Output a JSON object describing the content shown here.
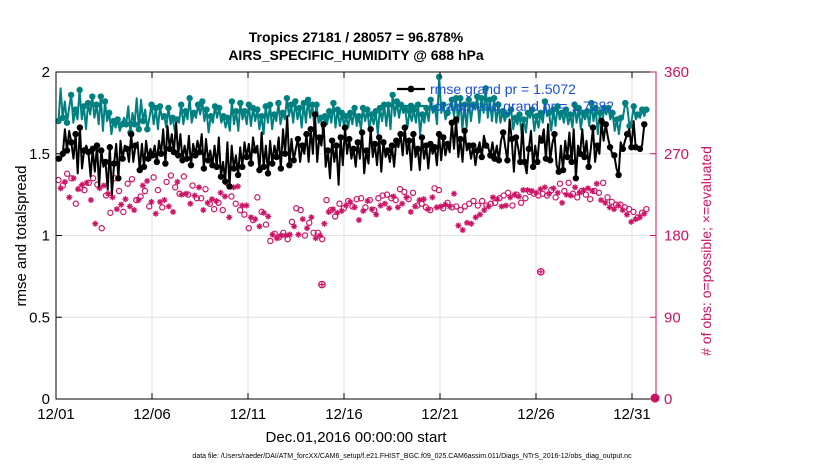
{
  "chart_data": {
    "type": "line",
    "title_line1": "Tropics 27181 / 28057 = 96.878%",
    "title_line2": "AIRS_SPECIFIC_HUMIDITY @ 688 hPa",
    "xlabel": "Dec.01,2016 00:00:00 start",
    "ylabel_left": "rmse and totalspread",
    "ylabel_right": "# of obs: o=possible; ×=evaluated",
    "footnote": "data file: /Users/raeder/DAI/ATM_forcXX/CAM6_setup/f.e21.FHIST_BGC.f09_025.CAM6assim.011/Diags_NTrS_2016-12/obs_diag_output.nc",
    "x_tick_labels": [
      "12/01",
      "12/06",
      "12/11",
      "12/16",
      "12/21",
      "12/26",
      "12/31"
    ],
    "x_tick_values": [
      0,
      5,
      10,
      15,
      20,
      25,
      30
    ],
    "xlim": [
      0,
      31.25
    ],
    "y_left_ticks": [
      "0",
      "0.5",
      "1",
      "1.5",
      "2"
    ],
    "y_left_tick_values": [
      0,
      0.5,
      1,
      1.5,
      2
    ],
    "ylim_left": [
      0,
      2
    ],
    "y_right_ticks": [
      "0",
      "90",
      "180",
      "270",
      "360"
    ],
    "y_right_tick_values": [
      0,
      90,
      180,
      270,
      360
    ],
    "ylim_right": [
      0,
      360
    ],
    "grid": true,
    "colors": {
      "rmse": "#000000",
      "totalspread": "#008080",
      "obs": "#cc1466",
      "legend_text": "#1a4fd6",
      "grid": "#e4e4e4"
    },
    "series": [
      {
        "name": "rmse",
        "legend_label": "rmse grand pr = 1.5072",
        "marker": "filled-circle",
        "values": [
          1.47,
          1.46,
          1.5,
          1.65,
          1.52,
          1.64,
          1.57,
          1.47,
          1.62,
          1.38,
          1.66,
          1.41,
          1.52,
          1.55,
          1.51,
          1.36,
          1.53,
          1.39,
          1.55,
          1.3,
          1.52,
          1.42,
          1.45,
          1.28,
          1.54,
          1.25,
          1.44,
          1.56,
          1.35,
          1.58,
          1.47,
          1.55,
          1.53,
          1.45,
          1.62,
          1.45,
          1.55,
          1.57,
          1.4,
          1.56,
          1.42,
          1.58,
          1.47,
          1.53,
          1.49,
          1.55,
          1.45,
          1.58,
          1.5,
          1.65,
          1.44,
          1.67,
          1.53,
          1.62,
          1.51,
          1.69,
          1.49,
          1.62,
          1.46,
          1.55,
          1.47,
          1.61,
          1.43,
          1.56,
          1.49,
          1.58,
          1.51,
          1.62,
          1.41,
          1.59,
          1.46,
          1.52,
          1.43,
          1.55,
          1.42,
          1.6,
          1.36,
          1.45,
          1.33,
          1.57,
          1.3,
          1.55,
          1.41,
          1.49,
          1.37,
          1.54,
          1.42,
          1.57,
          1.48,
          1.56,
          1.44,
          1.6,
          1.52,
          1.55,
          1.4,
          1.63,
          1.42,
          1.55,
          1.38,
          1.58,
          1.44,
          1.55,
          1.48,
          1.6,
          1.41,
          1.65,
          1.5,
          1.73,
          1.43,
          1.59,
          1.46,
          1.53,
          1.59,
          1.45,
          1.55,
          1.5,
          1.62,
          1.45,
          1.65,
          1.5,
          1.74,
          1.45,
          1.6,
          1.55,
          1.68,
          1.42,
          1.52,
          1.35,
          1.58,
          1.45,
          1.55,
          1.31,
          1.6,
          1.43,
          1.66,
          1.5,
          1.59,
          1.47,
          1.53,
          1.42,
          1.57,
          1.47,
          1.63,
          1.38,
          1.52,
          1.44,
          1.65,
          1.48,
          1.56,
          1.43,
          1.6,
          1.39,
          1.57,
          1.48,
          1.52,
          1.45,
          1.55,
          1.42,
          1.58,
          1.54,
          1.62,
          1.49,
          1.66,
          1.5,
          1.58,
          1.4,
          1.62,
          1.48,
          1.53,
          1.4,
          1.6,
          1.47,
          1.55,
          1.41,
          1.56,
          1.5,
          1.54,
          1.43,
          1.62,
          1.46,
          1.6,
          1.49,
          1.56,
          1.51,
          1.69,
          1.53,
          1.71,
          1.48,
          1.59,
          1.45,
          1.64,
          1.52,
          1.55,
          1.47,
          1.55,
          1.43,
          1.52,
          1.57,
          1.48,
          1.61,
          1.55,
          1.54,
          1.49,
          1.57,
          1.47,
          1.55,
          1.46,
          1.58,
          1.63,
          1.54,
          1.46,
          1.71,
          1.59,
          1.39,
          1.6,
          1.54,
          1.45,
          1.68,
          1.45,
          1.38,
          1.53,
          1.64,
          1.42,
          1.55,
          1.45,
          1.61,
          1.58,
          1.65,
          1.47,
          1.68,
          1.46,
          1.56,
          1.62,
          1.43,
          1.39,
          1.55,
          1.4,
          1.58,
          1.48,
          1.63,
          1.45,
          1.65,
          1.35,
          1.55,
          1.5,
          1.65,
          1.48,
          1.58,
          1.42,
          1.53,
          1.66,
          1.45,
          1.55,
          1.5,
          1.7,
          1.58,
          1.68,
          1.6,
          1.54,
          1.5,
          1.49,
          1.41,
          1.37,
          1.57,
          1.53,
          1.58,
          1.62,
          1.65,
          1.54,
          1.7,
          1.54,
          1.53,
          1.53,
          1.55,
          1.68,
          1.69
        ]
      },
      {
        "name": "totalspread",
        "legend_label": "totalspread grand pr = 1.7282",
        "marker": "filled-circle",
        "values": [
          1.7,
          1.9,
          1.72,
          1.82,
          1.69,
          1.78,
          1.86,
          1.69,
          1.77,
          1.71,
          1.89,
          1.71,
          1.79,
          1.65,
          1.81,
          1.74,
          1.85,
          1.72,
          1.8,
          1.68,
          1.85,
          1.64,
          1.82,
          1.7,
          1.75,
          1.62,
          1.7,
          1.66,
          1.71,
          1.64,
          1.68,
          1.72,
          1.68,
          1.79,
          1.63,
          1.75,
          1.68,
          1.84,
          1.65,
          1.83,
          1.7,
          1.77,
          1.65,
          1.72,
          1.8,
          1.68,
          1.78,
          1.65,
          1.79,
          1.71,
          1.73,
          1.66,
          1.78,
          1.68,
          1.72,
          1.64,
          1.71,
          1.69,
          1.8,
          1.68,
          1.76,
          1.71,
          1.84,
          1.69,
          1.75,
          1.72,
          1.8,
          1.74,
          1.82,
          1.7,
          1.77,
          1.63,
          1.73,
          1.69,
          1.79,
          1.72,
          1.78,
          1.69,
          1.73,
          1.66,
          1.72,
          1.64,
          1.82,
          1.68,
          1.76,
          1.64,
          1.81,
          1.71,
          1.76,
          1.68,
          1.8,
          1.67,
          1.78,
          1.7,
          1.77,
          1.65,
          1.73,
          1.62,
          1.79,
          1.69,
          1.8,
          1.65,
          1.74,
          1.7,
          1.81,
          1.68,
          1.75,
          1.71,
          1.84,
          1.73,
          1.8,
          1.69,
          1.82,
          1.71,
          1.78,
          1.66,
          1.81,
          1.69,
          1.83,
          1.72,
          1.8,
          1.66,
          1.8,
          1.69,
          1.72,
          1.64,
          1.73,
          1.68,
          1.76,
          1.69,
          1.81,
          1.66,
          1.77,
          1.67,
          1.75,
          1.67,
          1.73,
          1.66,
          1.75,
          1.68,
          1.78,
          1.67,
          1.73,
          1.65,
          1.78,
          1.7,
          1.77,
          1.65,
          1.74,
          1.68,
          1.76,
          1.62,
          1.78,
          1.7,
          1.8,
          1.67,
          1.8,
          1.65,
          1.86,
          1.73,
          1.82,
          1.72,
          1.8,
          1.75,
          1.77,
          1.66,
          1.76,
          1.7,
          1.77,
          1.69,
          1.8,
          1.62,
          1.74,
          1.69,
          1.78,
          1.7,
          1.83,
          1.75,
          1.78,
          1.68,
          1.97,
          1.75,
          1.8,
          1.71,
          1.75,
          1.79,
          1.83,
          1.73,
          1.84,
          1.69,
          1.84,
          1.65,
          1.8,
          1.66,
          1.83,
          1.7,
          1.8,
          1.77,
          1.85,
          1.69,
          1.84,
          1.75,
          1.9,
          1.72,
          1.83,
          1.7,
          1.84,
          1.69,
          1.8,
          1.69,
          1.76,
          1.7,
          1.74,
          1.73,
          1.77,
          1.65,
          1.72,
          1.68,
          1.74,
          1.62,
          1.71,
          1.63,
          1.75,
          1.72,
          1.77,
          1.64,
          1.73,
          1.66,
          1.75,
          1.69,
          1.82,
          1.73,
          1.75,
          1.64,
          1.77,
          1.67,
          1.79,
          1.71,
          1.75,
          1.69,
          1.77,
          1.68,
          1.74,
          1.66,
          1.8,
          1.69,
          1.78,
          1.65,
          1.75,
          1.71,
          1.76,
          1.67,
          1.81,
          1.7,
          1.78,
          1.62,
          1.75,
          1.67,
          1.78,
          1.74,
          1.78,
          1.71,
          1.75,
          1.64,
          1.71,
          1.62,
          1.72,
          1.73,
          1.81,
          1.78,
          1.67,
          1.7,
          1.79,
          1.71,
          1.74,
          1.72,
          1.77,
          1.73,
          1.77
        ]
      },
      {
        "name": "obs_possible",
        "marker": "open-circle",
        "axis": "right",
        "values": [
          241,
          240,
          235,
          245,
          248,
          230,
          243,
          250,
          215,
          239,
          232,
          244,
          230,
          245,
          238,
          225,
          243,
          200,
          236,
          240,
          188,
          242,
          224,
          233,
          205,
          229,
          243,
          216,
          229,
          221,
          206,
          227,
          237,
          219,
          242,
          215,
          219,
          226,
          223,
          242,
          229,
          247,
          212,
          224,
          244,
          211,
          230,
          224,
          211,
          226,
          239,
          219,
          246,
          213,
          233,
          246,
          226,
          232,
          245,
          233,
          225,
          222,
          235,
          231,
          221,
          240,
          221,
          215,
          231,
          223,
          215,
          227,
          209,
          225,
          216,
          234,
          208,
          230,
          238,
          207,
          223,
          240,
          215,
          241,
          208,
          220,
          203,
          220,
          188,
          207,
          197,
          205,
          222,
          197,
          206,
          212,
          192,
          208,
          174,
          188,
          182,
          184,
          178,
          187,
          183,
          187,
          176,
          188,
          195,
          197,
          210,
          188,
          208,
          205,
          180,
          195,
          194,
          207,
          183,
          184,
          183,
          187,
          176,
          200,
          219,
          213,
          208,
          216,
          201,
          212,
          215,
          214,
          210,
          220,
          218,
          224,
          212,
          218,
          220,
          204,
          221,
          214,
          211,
          225,
          219,
          216,
          208,
          210,
          221,
          220,
          224,
          222,
          225,
          217,
          221,
          230,
          219,
          218,
          231,
          222,
          228,
          229,
          220,
          213,
          227,
          219,
          213,
          226,
          215,
          227,
          211,
          216,
          208,
          229,
          232,
          218,
          230,
          219,
          210,
          221,
          216,
          219,
          211,
          233,
          212,
          198,
          208,
          193,
          212,
          201,
          215,
          200,
          218,
          207,
          213,
          210,
          218,
          215,
          213,
          219,
          215,
          229,
          216,
          227,
          221,
          219,
          224,
          220,
          227,
          229,
          213,
          232,
          225,
          230,
          216,
          237,
          221,
          237,
          228,
          236,
          226,
          234,
          224,
          238,
          226,
          240,
          224,
          233,
          230,
          239,
          222,
          234,
          237,
          223,
          229,
          232,
          238,
          231,
          226,
          240,
          222,
          234,
          229,
          237,
          225,
          239,
          220,
          236,
          229,
          244,
          227,
          226,
          238,
          223,
          222,
          218,
          217,
          216,
          214,
          220,
          214,
          215,
          211,
          210,
          209,
          202,
          206,
          205,
          200,
          207,
          205,
          211,
          209
        ]
      },
      {
        "name": "obs_evaluated",
        "marker": "asterisk",
        "axis": "right",
        "values": [
          232,
          232,
          230,
          239,
          240,
          222,
          235,
          243,
          208,
          231,
          225,
          236,
          223,
          238,
          230,
          219,
          236,
          193,
          229,
          232,
          182,
          235,
          217,
          226,
          198,
          222,
          235,
          209,
          223,
          214,
          200,
          220,
          229,
          212,
          235,
          208,
          212,
          219,
          216,
          235,
          222,
          240,
          205,
          217,
          237,
          204,
          223,
          217,
          204,
          219,
          232,
          212,
          239,
          206,
          226,
          239,
          219,
          225,
          238,
          226,
          218,
          215,
          228,
          224,
          214,
          233,
          214,
          208,
          224,
          216,
          208,
          220,
          202,
          218,
          209,
          227,
          201,
          223,
          231,
          200,
          216,
          233,
          208,
          234,
          201,
          213,
          196,
          213,
          181,
          200,
          190,
          198,
          215,
          190,
          199,
          205,
          185,
          201,
          167,
          181,
          175,
          177,
          171,
          180,
          176,
          180,
          169,
          181,
          188,
          190,
          203,
          181,
          201,
          198,
          173,
          188,
          187,
          200,
          176,
          177,
          176,
          180,
          169,
          193,
          212,
          206,
          201,
          209,
          194,
          205,
          208,
          207,
          203,
          213,
          211,
          217,
          205,
          211,
          213,
          197,
          214,
          207,
          204,
          218,
          212,
          209,
          201,
          203,
          214,
          213,
          217,
          215,
          218,
          210,
          214,
          223,
          212,
          211,
          224,
          215,
          221,
          222,
          213,
          206,
          220,
          212,
          206,
          219,
          208,
          220,
          204,
          209,
          201,
          222,
          225,
          211,
          223,
          212,
          203,
          214,
          209,
          212,
          204,
          226,
          205,
          191,
          201,
          186,
          205,
          194,
          208,
          193,
          211,
          200,
          206,
          203,
          211,
          208,
          206,
          212,
          208,
          222,
          209,
          220,
          214,
          212,
          217,
          213,
          220,
          222,
          206,
          225,
          218,
          223,
          209,
          230,
          214,
          230,
          221,
          229,
          219,
          227,
          217,
          231,
          219,
          233,
          217,
          226,
          223,
          232,
          215,
          227,
          230,
          216,
          222,
          225,
          231,
          224,
          219,
          233,
          215,
          227,
          222,
          230,
          218,
          232,
          213,
          229,
          222,
          237,
          220,
          219,
          231,
          216,
          215,
          211,
          210,
          209,
          207,
          213,
          207,
          208,
          204,
          203,
          202,
          195,
          199,
          198,
          193,
          200,
          198,
          204,
          202
        ]
      }
    ],
    "annotations": [
      {
        "x": 13.85,
        "y_right": 126,
        "kind": "isolated-obs-pair"
      },
      {
        "x": 25.25,
        "y_right": 140,
        "kind": "isolated-obs-pair"
      },
      {
        "x": 31.2,
        "y_right": 1,
        "kind": "zero-obs-marker"
      }
    ]
  }
}
